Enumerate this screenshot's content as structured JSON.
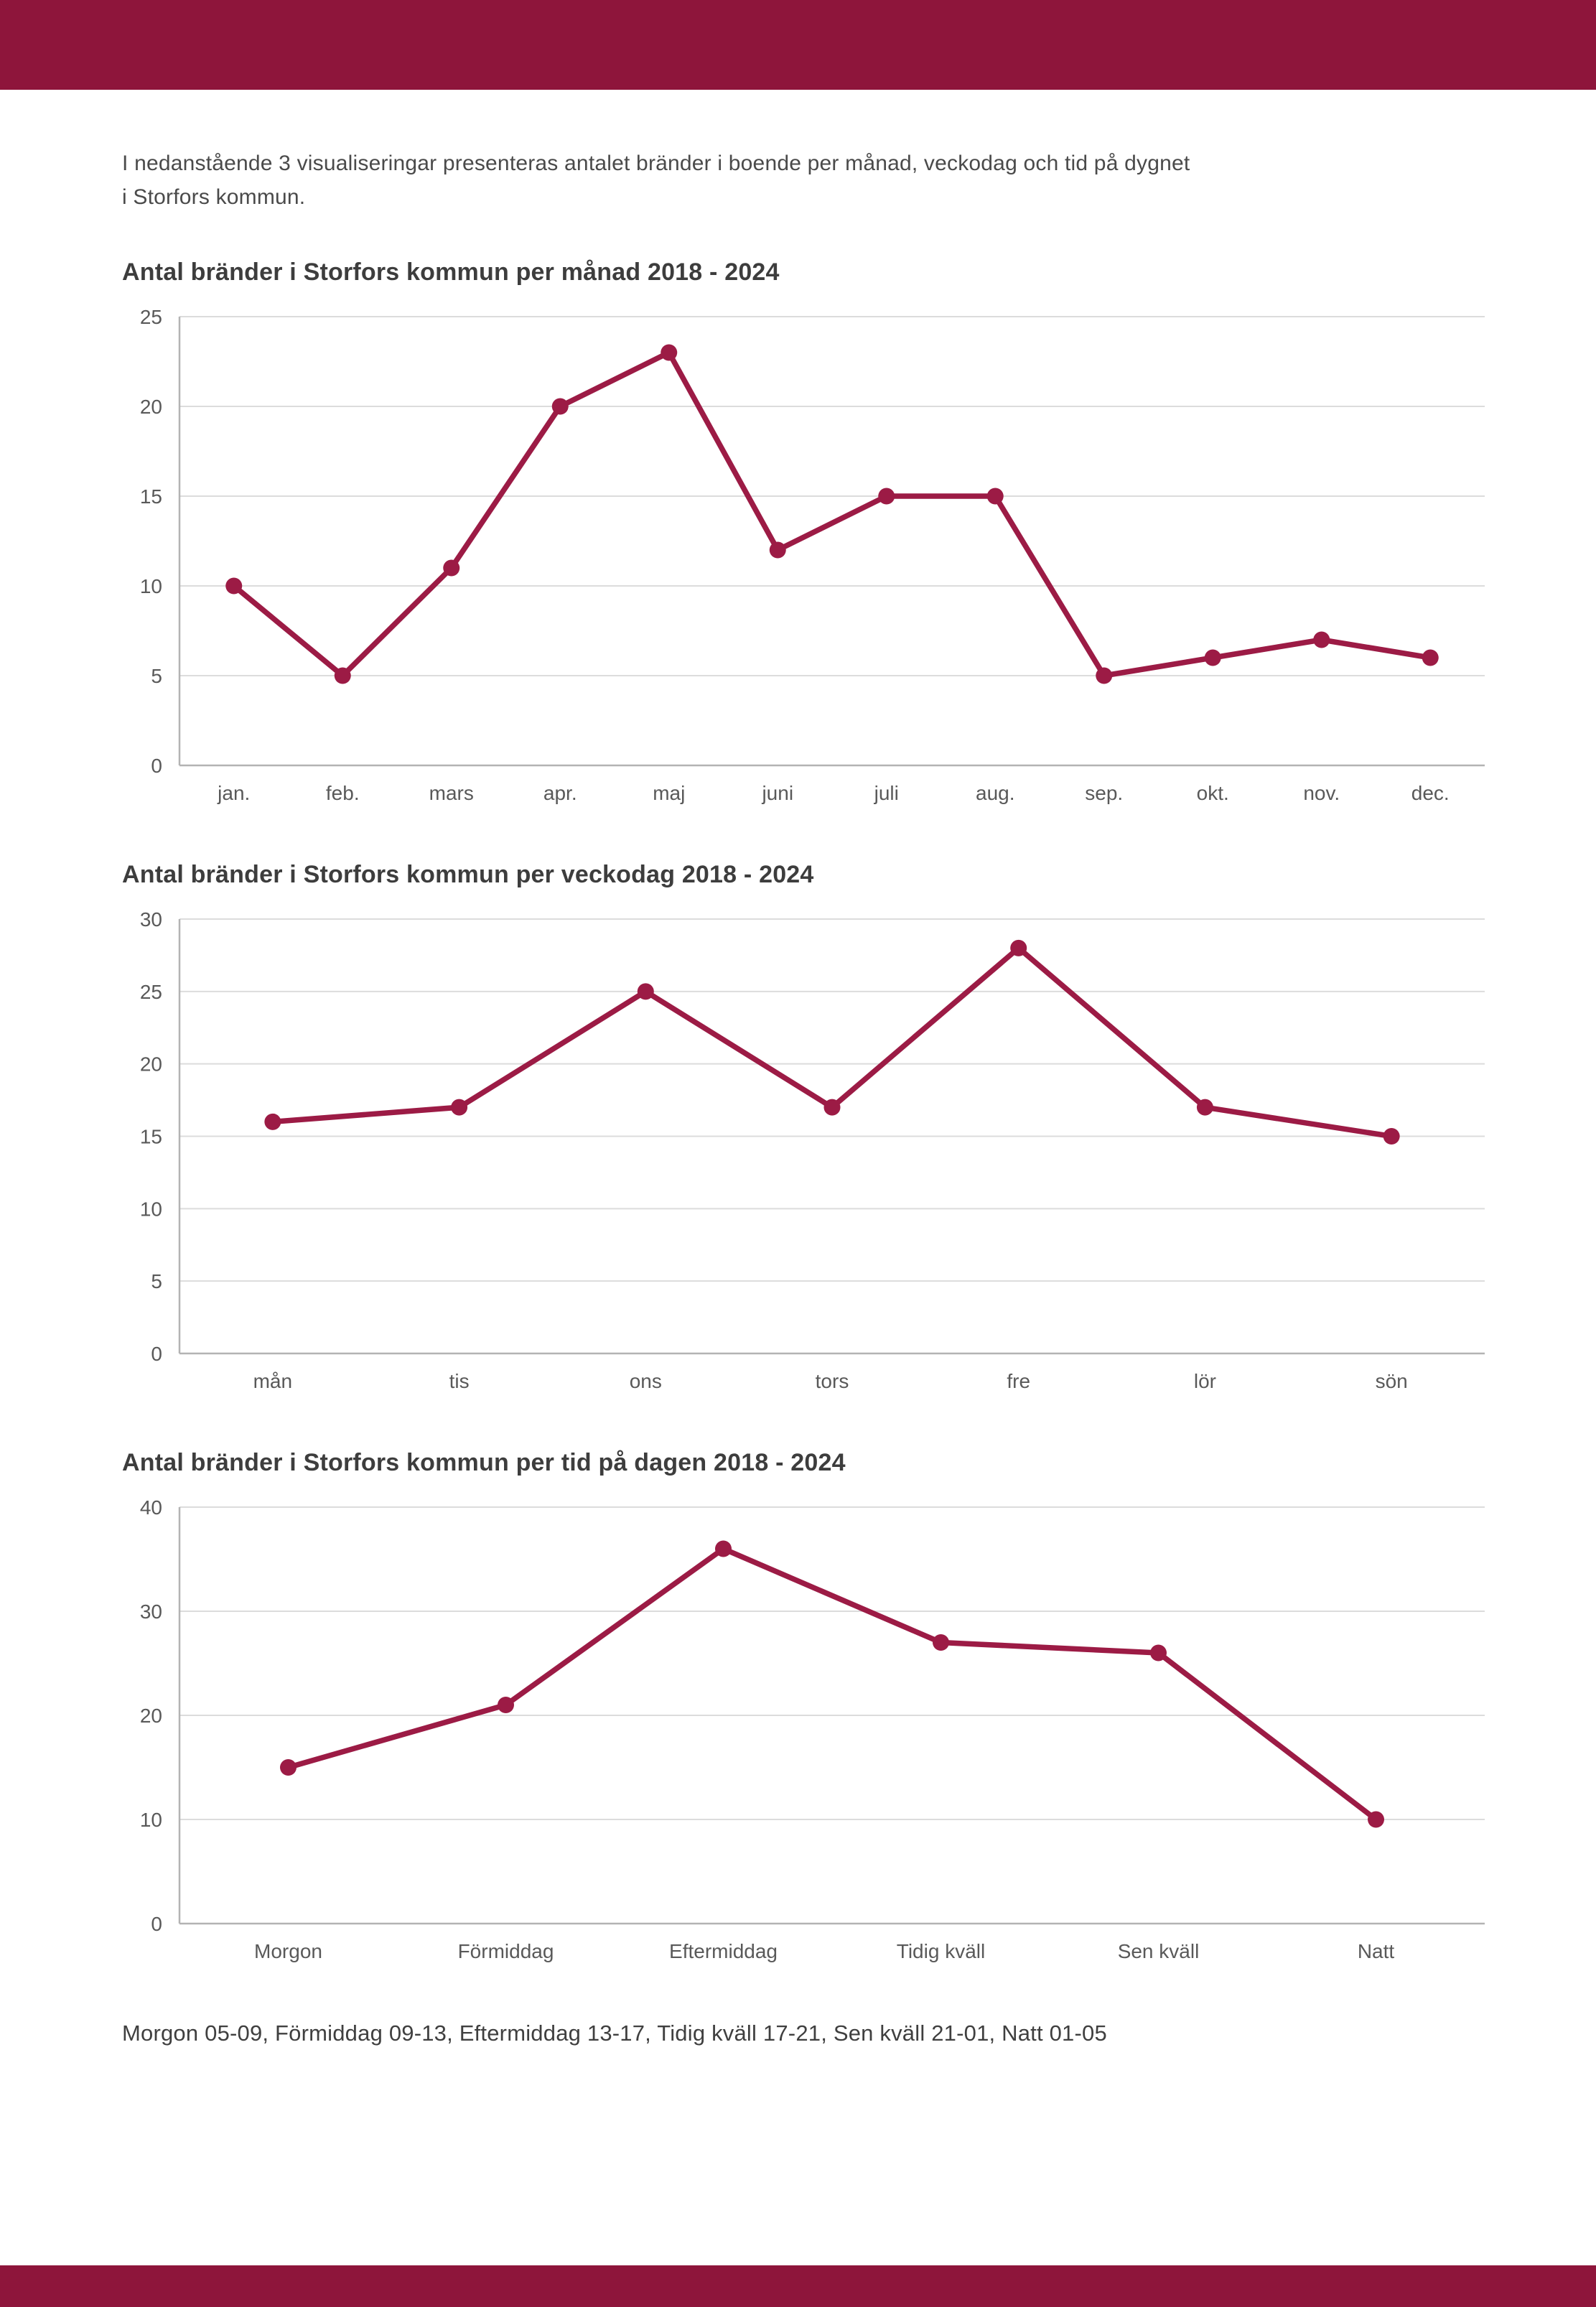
{
  "page": {
    "intro_line1": "I nedanstående 3 visualiseringar presenteras antalet bränder i boende per månad, veckodag och tid på dygnet",
    "intro_line2": "i Storfors kommun.",
    "footer_note": "Morgon 05-09, Förmiddag 09-13, Eftermiddag 13-17, Tidig kväll 17-21, Sen kväll 21-01, Natt 01-05"
  },
  "colors": {
    "banner": "#8e153b",
    "line": "#9c1b45",
    "marker": "#9c1b45",
    "grid": "#dcdcdc",
    "axis": "#b3b3b3",
    "tick_text": "#595959",
    "title_text": "#3d3d3d"
  },
  "chart_data": [
    {
      "type": "line",
      "title": "Antal bränder i Storfors kommun per månad 2018 - 2024",
      "categories": [
        "jan.",
        "feb.",
        "mars",
        "apr.",
        "maj",
        "juni",
        "juli",
        "aug.",
        "sep.",
        "okt.",
        "nov.",
        "dec."
      ],
      "values": [
        10,
        5,
        11,
        20,
        23,
        12,
        15,
        15,
        5,
        6,
        7,
        6
      ],
      "xlabel": "",
      "ylabel": "",
      "ylim": [
        0,
        25
      ],
      "ytick_step": 5,
      "grid": true,
      "legend": "none"
    },
    {
      "type": "line",
      "title": "Antal bränder i Storfors kommun per veckodag 2018 - 2024",
      "categories": [
        "mån",
        "tis",
        "ons",
        "tors",
        "fre",
        "lör",
        "sön"
      ],
      "values": [
        16,
        17,
        25,
        17,
        28,
        17,
        15
      ],
      "xlabel": "",
      "ylabel": "",
      "ylim": [
        0,
        30
      ],
      "ytick_step": 5,
      "grid": true,
      "legend": "none"
    },
    {
      "type": "line",
      "title": "Antal bränder i Storfors kommun per tid på dagen 2018 - 2024",
      "categories": [
        "Morgon",
        "Förmiddag",
        "Eftermiddag",
        "Tidig kväll",
        "Sen kväll",
        "Natt"
      ],
      "values": [
        15,
        21,
        36,
        27,
        26,
        10
      ],
      "xlabel": "",
      "ylabel": "",
      "ylim": [
        0,
        40
      ],
      "ytick_step": 10,
      "grid": true,
      "legend": "none"
    }
  ]
}
